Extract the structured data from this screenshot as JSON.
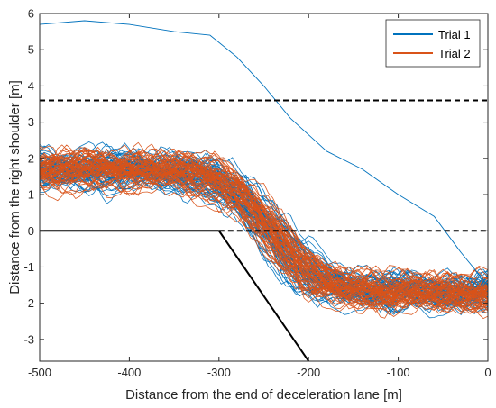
{
  "chart_data": {
    "type": "line",
    "xlabel": "Distance from the end of deceleration lane [m]",
    "ylabel": "Distance from the right shoulder [m]",
    "xlim": [
      -500,
      0
    ],
    "ylim": [
      -3.6,
      6
    ],
    "x_ticks": [
      -500,
      -400,
      -300,
      -200,
      -100,
      0
    ],
    "y_ticks": [
      -3,
      -2,
      -1,
      0,
      1,
      2,
      3,
      4,
      5,
      6
    ],
    "x_tick_labels": [
      "-500",
      "-400",
      "-300",
      "-200",
      "-100",
      "0"
    ],
    "y_tick_labels": [
      "-3",
      "-2",
      "-1",
      "0",
      "1",
      "2",
      "3",
      "4",
      "5",
      "6"
    ],
    "grid": false,
    "legend_position": "top-right",
    "series": [
      {
        "name": "Trial 1",
        "color": "#0072BD",
        "count_estimate": 60,
        "typical_start": 1.7,
        "typical_end": -1.7,
        "transition_x": [
          -300,
          -170
        ]
      },
      {
        "name": "Trial 2",
        "color": "#D95319",
        "count_estimate": 60,
        "typical_start": 1.7,
        "typical_end": -1.7,
        "transition_x": [
          -300,
          -170
        ]
      }
    ],
    "outlier_trajectory": {
      "series": "Trial 1",
      "x": [
        -500,
        -450,
        -400,
        -350,
        -310,
        -280,
        -250,
        -220,
        -180,
        -140,
        -100,
        -60,
        -30,
        0
      ],
      "y": [
        5.7,
        5.8,
        5.7,
        5.5,
        5.4,
        4.8,
        4.0,
        3.1,
        2.2,
        1.7,
        1.0,
        0.4,
        -0.6,
        -1.5
      ]
    },
    "reference_lines": [
      {
        "label": "dashed upper lane line",
        "style": "dashed",
        "color": "#000000",
        "y": 3.6,
        "x": [
          -500,
          0
        ]
      },
      {
        "label": "dashed lane line",
        "style": "dashed",
        "color": "#000000",
        "y": 0,
        "x": [
          -300,
          0
        ]
      },
      {
        "label": "solid shoulder line",
        "style": "solid",
        "color": "#000000",
        "y": 0,
        "x": [
          -500,
          -300
        ]
      },
      {
        "label": "deceleration lane taper",
        "style": "solid",
        "color": "#000000",
        "x": [
          -300,
          -200
        ],
        "y": [
          0,
          -3.6
        ]
      }
    ]
  }
}
